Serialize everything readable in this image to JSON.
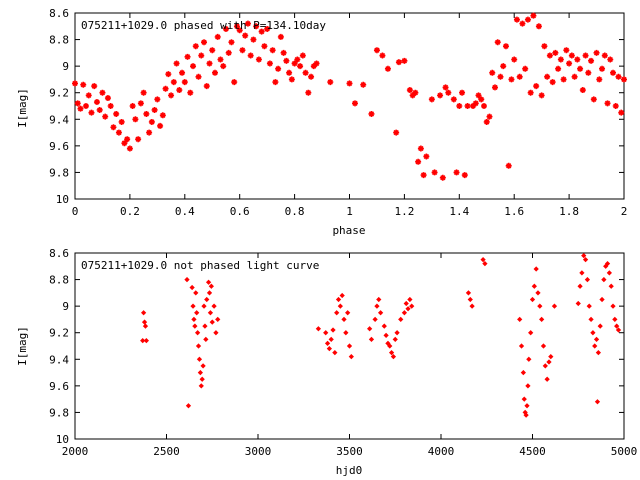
{
  "chart_data": [
    {
      "type": "scatter",
      "title": "075211+1029.0 phased with P=134.10day",
      "xlabel": "phase",
      "ylabel": "I[mag]",
      "xlim": [
        0,
        2
      ],
      "ylim": [
        10,
        8.6
      ],
      "y_inverted": true,
      "xticks": [
        "0",
        "0.2",
        "0.4",
        "0.6",
        "0.8",
        "1",
        "1.2",
        "1.4",
        "1.6",
        "1.8",
        "2"
      ],
      "yticks": [
        "8.6",
        "8.8",
        "9",
        "9.2",
        "9.4",
        "9.6",
        "9.8",
        "10"
      ],
      "marker": "star",
      "color": "#ff0000",
      "points": [
        [
          0.0,
          9.13
        ],
        [
          0.01,
          9.28
        ],
        [
          0.02,
          9.32
        ],
        [
          0.03,
          9.14
        ],
        [
          0.04,
          9.3
        ],
        [
          0.05,
          9.22
        ],
        [
          0.06,
          9.35
        ],
        [
          0.07,
          9.15
        ],
        [
          0.08,
          9.27
        ],
        [
          0.09,
          9.33
        ],
        [
          0.1,
          9.2
        ],
        [
          0.11,
          9.38
        ],
        [
          0.12,
          9.24
        ],
        [
          0.13,
          9.3
        ],
        [
          0.14,
          9.46
        ],
        [
          0.15,
          9.36
        ],
        [
          0.16,
          9.5
        ],
        [
          0.17,
          9.42
        ],
        [
          0.18,
          9.58
        ],
        [
          0.19,
          9.55
        ],
        [
          0.2,
          9.62
        ],
        [
          0.21,
          9.3
        ],
        [
          0.22,
          9.4
        ],
        [
          0.23,
          9.55
        ],
        [
          0.24,
          9.28
        ],
        [
          0.25,
          9.2
        ],
        [
          0.26,
          9.36
        ],
        [
          0.27,
          9.5
        ],
        [
          0.28,
          9.42
        ],
        [
          0.29,
          9.33
        ],
        [
          0.3,
          9.25
        ],
        [
          0.31,
          9.45
        ],
        [
          0.32,
          9.37
        ],
        [
          0.33,
          9.17
        ],
        [
          0.34,
          9.06
        ],
        [
          0.35,
          9.22
        ],
        [
          0.36,
          9.12
        ],
        [
          0.37,
          8.98
        ],
        [
          0.38,
          9.18
        ],
        [
          0.39,
          9.05
        ],
        [
          0.4,
          9.12
        ],
        [
          0.41,
          8.93
        ],
        [
          0.42,
          9.2
        ],
        [
          0.43,
          9.0
        ],
        [
          0.44,
          8.85
        ],
        [
          0.45,
          9.08
        ],
        [
          0.46,
          8.92
        ],
        [
          0.47,
          8.82
        ],
        [
          0.48,
          9.15
        ],
        [
          0.49,
          8.98
        ],
        [
          0.5,
          8.88
        ],
        [
          0.51,
          9.05
        ],
        [
          0.52,
          8.78
        ],
        [
          0.53,
          8.95
        ],
        [
          0.54,
          9.0
        ],
        [
          0.55,
          8.72
        ],
        [
          0.56,
          8.9
        ],
        [
          0.57,
          8.82
        ],
        [
          0.58,
          9.12
        ],
        [
          0.59,
          8.7
        ],
        [
          0.6,
          8.73
        ],
        [
          0.61,
          8.88
        ],
        [
          0.62,
          8.77
        ],
        [
          0.63,
          8.68
        ],
        [
          0.64,
          8.92
        ],
        [
          0.65,
          8.8
        ],
        [
          0.66,
          8.7
        ],
        [
          0.67,
          8.95
        ],
        [
          0.68,
          8.74
        ],
        [
          0.69,
          8.85
        ],
        [
          0.7,
          8.72
        ],
        [
          0.71,
          8.98
        ],
        [
          0.72,
          8.88
        ],
        [
          0.73,
          9.12
        ],
        [
          0.74,
          9.02
        ],
        [
          0.75,
          8.78
        ],
        [
          0.76,
          8.9
        ],
        [
          0.77,
          8.96
        ],
        [
          0.78,
          9.05
        ],
        [
          0.79,
          9.1
        ],
        [
          0.8,
          8.98
        ],
        [
          0.81,
          8.95
        ],
        [
          0.82,
          9.0
        ],
        [
          0.83,
          8.92
        ],
        [
          0.84,
          9.05
        ],
        [
          0.85,
          9.2
        ],
        [
          0.86,
          9.08
        ],
        [
          0.87,
          9.0
        ],
        [
          0.88,
          8.98
        ],
        [
          0.93,
          9.12
        ],
        [
          1.0,
          9.13
        ],
        [
          1.02,
          9.28
        ],
        [
          1.05,
          9.14
        ],
        [
          1.08,
          9.36
        ],
        [
          1.1,
          8.88
        ],
        [
          1.12,
          8.92
        ],
        [
          1.14,
          9.02
        ],
        [
          1.17,
          9.5
        ],
        [
          1.18,
          8.97
        ],
        [
          1.2,
          8.96
        ],
        [
          1.22,
          9.18
        ],
        [
          1.23,
          9.22
        ],
        [
          1.24,
          9.2
        ],
        [
          1.25,
          9.72
        ],
        [
          1.26,
          9.62
        ],
        [
          1.27,
          9.82
        ],
        [
          1.28,
          9.68
        ],
        [
          1.3,
          9.25
        ],
        [
          1.31,
          9.8
        ],
        [
          1.33,
          9.22
        ],
        [
          1.34,
          9.84
        ],
        [
          1.35,
          9.16
        ],
        [
          1.36,
          9.2
        ],
        [
          1.38,
          9.25
        ],
        [
          1.39,
          9.8
        ],
        [
          1.4,
          9.3
        ],
        [
          1.41,
          9.2
        ],
        [
          1.42,
          9.82
        ],
        [
          1.43,
          9.3
        ],
        [
          1.45,
          9.3
        ],
        [
          1.46,
          9.28
        ],
        [
          1.47,
          9.22
        ],
        [
          1.48,
          9.25
        ],
        [
          1.49,
          9.3
        ],
        [
          1.5,
          9.42
        ],
        [
          1.51,
          9.38
        ],
        [
          1.52,
          9.05
        ],
        [
          1.53,
          9.16
        ],
        [
          1.54,
          8.82
        ],
        [
          1.55,
          9.08
        ],
        [
          1.56,
          9.0
        ],
        [
          1.57,
          8.85
        ],
        [
          1.58,
          9.75
        ],
        [
          1.59,
          9.1
        ],
        [
          1.6,
          8.95
        ],
        [
          1.61,
          8.65
        ],
        [
          1.62,
          9.08
        ],
        [
          1.63,
          8.68
        ],
        [
          1.64,
          9.02
        ],
        [
          1.65,
          8.65
        ],
        [
          1.66,
          9.2
        ],
        [
          1.67,
          8.62
        ],
        [
          1.68,
          9.15
        ],
        [
          1.69,
          8.7
        ],
        [
          1.7,
          9.22
        ],
        [
          1.71,
          8.85
        ],
        [
          1.72,
          9.08
        ],
        [
          1.73,
          8.92
        ],
        [
          1.74,
          9.12
        ],
        [
          1.75,
          8.9
        ],
        [
          1.76,
          9.02
        ],
        [
          1.77,
          8.95
        ],
        [
          1.78,
          9.1
        ],
        [
          1.79,
          8.88
        ],
        [
          1.8,
          8.98
        ],
        [
          1.81,
          8.92
        ],
        [
          1.82,
          9.08
        ],
        [
          1.83,
          8.95
        ],
        [
          1.84,
          9.02
        ],
        [
          1.85,
          9.18
        ],
        [
          1.86,
          8.92
        ],
        [
          1.87,
          9.05
        ],
        [
          1.88,
          8.96
        ],
        [
          1.89,
          9.25
        ],
        [
          1.9,
          8.9
        ],
        [
          1.91,
          9.1
        ],
        [
          1.92,
          9.02
        ],
        [
          1.93,
          8.92
        ],
        [
          1.94,
          9.28
        ],
        [
          1.95,
          8.95
        ],
        [
          1.96,
          9.05
        ],
        [
          1.97,
          9.3
        ],
        [
          1.98,
          9.08
        ],
        [
          1.99,
          9.35
        ],
        [
          2.0,
          9.1
        ]
      ]
    },
    {
      "type": "scatter",
      "title": "075211+1029.0 not phased light curve",
      "xlabel": "hjd0",
      "ylabel": "I[mag]",
      "xlim": [
        2000,
        5000
      ],
      "ylim": [
        10,
        8.6
      ],
      "y_inverted": true,
      "xticks": [
        "2000",
        "2500",
        "3000",
        "3500",
        "4000",
        "4500",
        "5000"
      ],
      "yticks": [
        "8.6",
        "8.8",
        "9",
        "9.2",
        "9.4",
        "9.6",
        "9.8",
        "10"
      ],
      "marker": "diamond",
      "color": "#ff0000",
      "points": [
        [
          2370,
          9.26
        ],
        [
          2375,
          9.05
        ],
        [
          2380,
          9.12
        ],
        [
          2385,
          9.15
        ],
        [
          2390,
          9.26
        ],
        [
          2612,
          8.8
        ],
        [
          2620,
          9.75
        ],
        [
          2640,
          8.86
        ],
        [
          2645,
          9.0
        ],
        [
          2650,
          9.1
        ],
        [
          2655,
          9.15
        ],
        [
          2660,
          8.9
        ],
        [
          2665,
          9.05
        ],
        [
          2670,
          9.2
        ],
        [
          2675,
          9.3
        ],
        [
          2680,
          9.4
        ],
        [
          2685,
          9.5
        ],
        [
          2690,
          9.6
        ],
        [
          2695,
          9.55
        ],
        [
          2700,
          9.45
        ],
        [
          2705,
          9.0
        ],
        [
          2710,
          9.15
        ],
        [
          2715,
          9.25
        ],
        [
          2720,
          8.95
        ],
        [
          2730,
          8.82
        ],
        [
          2735,
          8.9
        ],
        [
          2740,
          9.05
        ],
        [
          2745,
          8.85
        ],
        [
          2750,
          9.12
        ],
        [
          2760,
          9.0
        ],
        [
          2770,
          9.2
        ],
        [
          2780,
          9.1
        ],
        [
          3330,
          9.17
        ],
        [
          3370,
          9.2
        ],
        [
          3380,
          9.28
        ],
        [
          3390,
          9.32
        ],
        [
          3400,
          9.25
        ],
        [
          3410,
          9.18
        ],
        [
          3420,
          9.35
        ],
        [
          3430,
          9.05
        ],
        [
          3440,
          8.95
        ],
        [
          3450,
          9.0
        ],
        [
          3460,
          8.92
        ],
        [
          3470,
          9.1
        ],
        [
          3480,
          9.2
        ],
        [
          3490,
          9.05
        ],
        [
          3500,
          9.3
        ],
        [
          3510,
          9.38
        ],
        [
          3610,
          9.17
        ],
        [
          3620,
          9.25
        ],
        [
          3640,
          9.1
        ],
        [
          3650,
          9.0
        ],
        [
          3660,
          8.95
        ],
        [
          3670,
          9.05
        ],
        [
          3690,
          9.15
        ],
        [
          3700,
          9.22
        ],
        [
          3710,
          9.28
        ],
        [
          3720,
          9.3
        ],
        [
          3730,
          9.35
        ],
        [
          3740,
          9.38
        ],
        [
          3750,
          9.25
        ],
        [
          3760,
          9.2
        ],
        [
          3780,
          9.1
        ],
        [
          3800,
          9.05
        ],
        [
          3810,
          8.98
        ],
        [
          3820,
          9.02
        ],
        [
          3830,
          8.95
        ],
        [
          3840,
          9.0
        ],
        [
          4150,
          8.9
        ],
        [
          4160,
          8.95
        ],
        [
          4170,
          9.0
        ],
        [
          4230,
          8.65
        ],
        [
          4240,
          8.68
        ],
        [
          4430,
          9.1
        ],
        [
          4440,
          9.3
        ],
        [
          4450,
          9.5
        ],
        [
          4455,
          9.7
        ],
        [
          4460,
          9.8
        ],
        [
          4465,
          9.82
        ],
        [
          4470,
          9.75
        ],
        [
          4475,
          9.6
        ],
        [
          4480,
          9.4
        ],
        [
          4490,
          9.2
        ],
        [
          4500,
          8.95
        ],
        [
          4510,
          8.85
        ],
        [
          4520,
          8.72
        ],
        [
          4530,
          8.9
        ],
        [
          4540,
          9.0
        ],
        [
          4550,
          9.1
        ],
        [
          4560,
          9.3
        ],
        [
          4570,
          9.45
        ],
        [
          4580,
          9.55
        ],
        [
          4590,
          9.42
        ],
        [
          4600,
          9.38
        ],
        [
          4620,
          9.0
        ],
        [
          4750,
          8.98
        ],
        [
          4760,
          8.85
        ],
        [
          4770,
          8.75
        ],
        [
          4780,
          8.62
        ],
        [
          4790,
          8.65
        ],
        [
          4800,
          8.8
        ],
        [
          4810,
          9.0
        ],
        [
          4820,
          9.1
        ],
        [
          4830,
          9.2
        ],
        [
          4840,
          9.3
        ],
        [
          4850,
          9.25
        ],
        [
          4855,
          9.72
        ],
        [
          4860,
          9.35
        ],
        [
          4870,
          9.15
        ],
        [
          4880,
          8.95
        ],
        [
          4890,
          8.8
        ],
        [
          4900,
          8.7
        ],
        [
          4910,
          8.68
        ],
        [
          4920,
          8.75
        ],
        [
          4930,
          8.85
        ],
        [
          4940,
          9.0
        ],
        [
          4950,
          9.1
        ],
        [
          4960,
          9.15
        ],
        [
          4970,
          9.18
        ]
      ]
    }
  ]
}
